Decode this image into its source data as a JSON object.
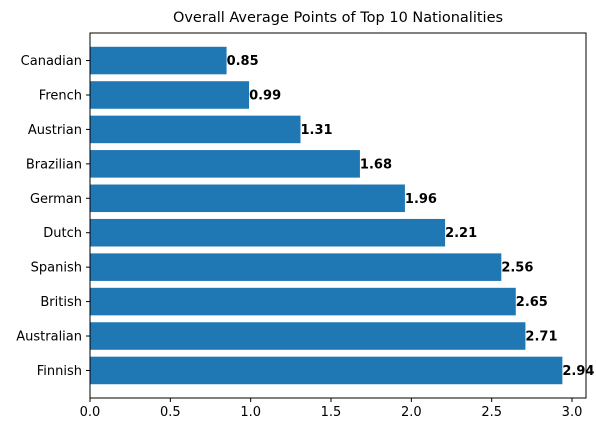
{
  "chart_data": {
    "type": "bar",
    "orientation": "horizontal",
    "title": "Overall Average Points of Top 10 Nationalities",
    "xlabel": "",
    "ylabel": "",
    "categories": [
      "Finnish",
      "Australian",
      "British",
      "Spanish",
      "Dutch",
      "German",
      "Brazilian",
      "Austrian",
      "French",
      "Canadian"
    ],
    "values": [
      2.94,
      2.71,
      2.65,
      2.56,
      2.21,
      1.96,
      1.68,
      1.31,
      0.99,
      0.85
    ],
    "value_labels": [
      "2.94",
      "2.71",
      "2.65",
      "2.56",
      "2.21",
      "1.96",
      "1.68",
      "1.31",
      "0.99",
      "0.85"
    ],
    "xlim": [
      0,
      3.087
    ],
    "xticks": [
      0.0,
      0.5,
      1.0,
      1.5,
      2.0,
      2.5,
      3.0
    ],
    "xtick_labels": [
      "0.0",
      "0.5",
      "1.0",
      "1.5",
      "2.0",
      "2.5",
      "3.0"
    ],
    "grid": false,
    "legend": "none",
    "bar_color": "#1f77b4"
  }
}
